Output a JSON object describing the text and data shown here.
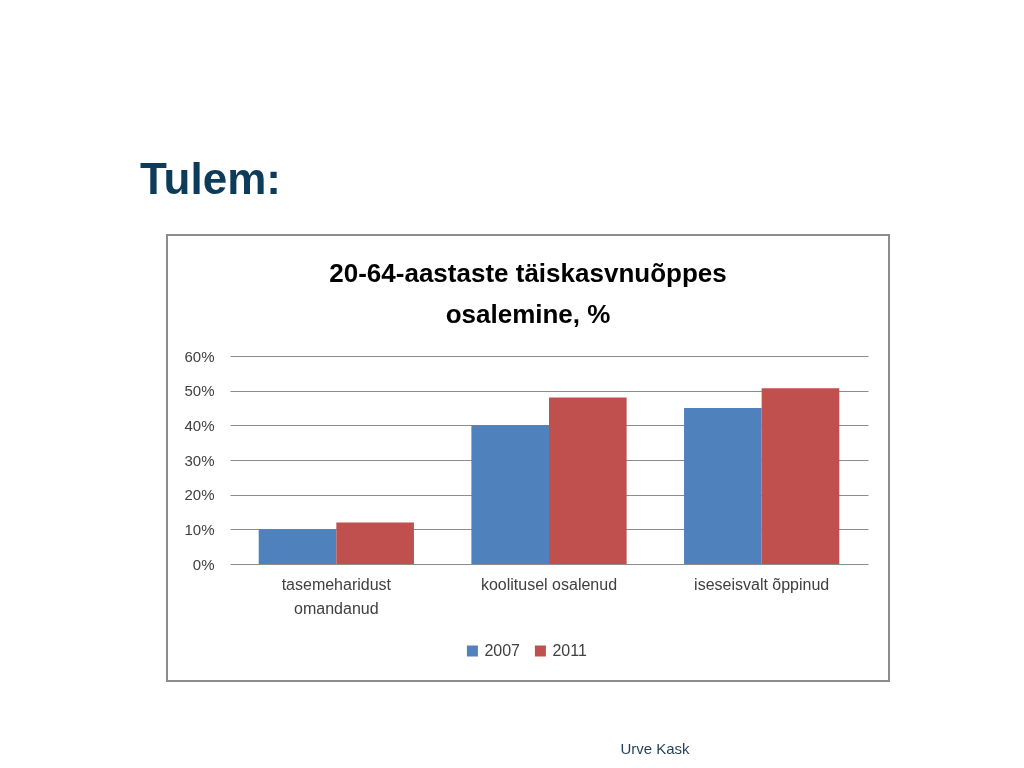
{
  "chart_data": {
    "type": "bar",
    "title": "Tulem:",
    "subtitle": "20-64-aastaste täiskasvnuõppes osalemine, %",
    "categories": [
      "tasemeharidust omandanud",
      "koolitusel osalenud",
      "iseseisvalt  õppinud"
    ],
    "series": [
      {
        "name": "2007",
        "color": "#4f81bd",
        "values": [
          10,
          40,
          45
        ]
      },
      {
        "name": "2011",
        "color": "#c0504d",
        "values": [
          12,
          48,
          50.7
        ]
      }
    ],
    "ylim": [
      0,
      60
    ],
    "yticks": [
      {
        "value": 0,
        "label": "0%"
      },
      {
        "value": 10,
        "label": "10%"
      },
      {
        "value": 20,
        "label": "20%"
      },
      {
        "value": 30,
        "label": "30%"
      },
      {
        "value": 40,
        "label": "40%"
      },
      {
        "value": 50,
        "label": "50%"
      },
      {
        "value": 60,
        "label": "60%"
      }
    ],
    "grid": "y",
    "legend": "bottom",
    "annotations": [
      "Urve Kask"
    ]
  }
}
